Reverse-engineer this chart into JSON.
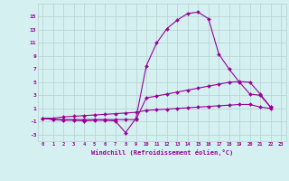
{
  "xlabel": "Windchill (Refroidissement éolien,°C)",
  "x": [
    0,
    1,
    2,
    3,
    4,
    5,
    6,
    7,
    8,
    9,
    10,
    11,
    12,
    13,
    14,
    15,
    16,
    17,
    18,
    19,
    20,
    21,
    22,
    23
  ],
  "line1": [
    -0.5,
    -0.7,
    -0.8,
    -0.8,
    -0.9,
    -0.8,
    -0.8,
    -0.9,
    -2.7,
    -0.5,
    7.5,
    11.0,
    13.2,
    14.5,
    15.5,
    15.7,
    14.7,
    9.3,
    7.0,
    5.0,
    3.2,
    3.0,
    1.2,
    null
  ],
  "line2": [
    -0.5,
    -0.7,
    -0.7,
    -0.7,
    -0.7,
    -0.7,
    -0.7,
    -0.7,
    -0.7,
    -0.7,
    2.6,
    2.9,
    3.2,
    3.5,
    3.8,
    4.1,
    4.4,
    4.7,
    5.0,
    5.1,
    5.0,
    3.2,
    1.2,
    null
  ],
  "line3": [
    -0.5,
    -0.5,
    -0.3,
    -0.2,
    -0.1,
    0.0,
    0.1,
    0.2,
    0.3,
    0.4,
    0.7,
    0.8,
    0.9,
    1.0,
    1.1,
    1.2,
    1.3,
    1.4,
    1.5,
    1.6,
    1.6,
    1.2,
    1.0,
    null
  ],
  "line_color": "#990099",
  "bg_color": "#d4f0f0",
  "grid_color": "#b8d0d0",
  "text_color": "#990099",
  "ylim": [
    -4,
    17
  ],
  "yticks": [
    -3,
    -1,
    1,
    3,
    5,
    7,
    9,
    11,
    13,
    15
  ],
  "xlim": [
    -0.5,
    23.5
  ]
}
